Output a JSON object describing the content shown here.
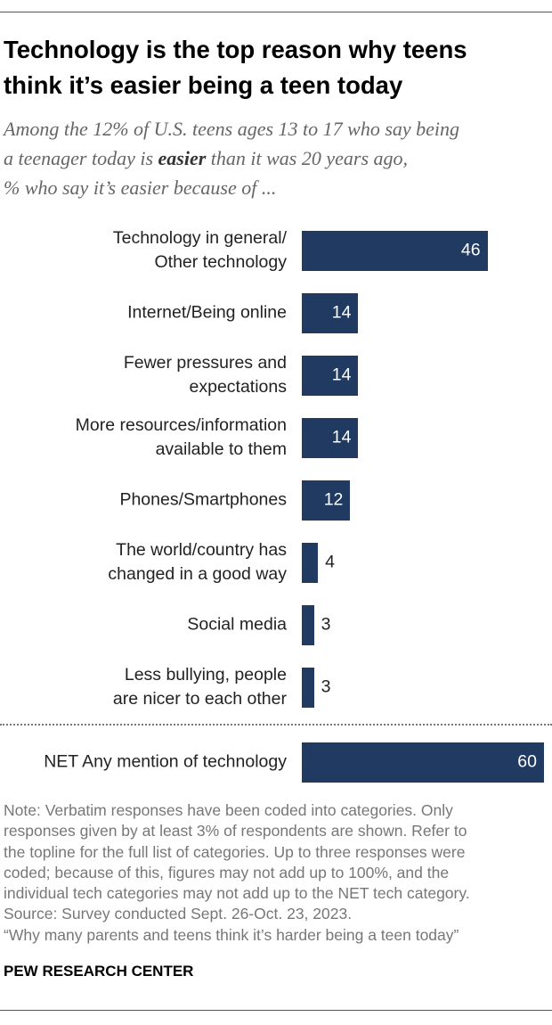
{
  "chart_data": {
    "type": "bar",
    "title": "Technology is the top reason why teens\nthink it’s easier being a teen today",
    "subtitle": [
      "Among the 12% of U.S. teens ages 13 to 17 who say being",
      "a teenager today is ",
      "easier",
      " than it was 20 years ago,",
      "% who say it’s easier because of ..."
    ],
    "categories": [
      "Technology in general/\nOther technology",
      "Internet/Being online",
      "Fewer pressures and\nexpectations",
      "More resources/information\navailable to them",
      "Phones/Smartphones",
      "The world/country has\nchanged in a good way",
      "Social media",
      "Less bullying, people\nare nicer to each other"
    ],
    "values": [
      46,
      14,
      14,
      14,
      12,
      4,
      3,
      3
    ],
    "net": {
      "category": "NET Any mention of technology",
      "value": 60
    },
    "color": "#203a62",
    "note": "Note: Verbatim responses have been coded into categories. Only\nresponses given by at least 3% of respondents are shown. Refer to\nthe topline for the full list of categories. Up to three responses were\ncoded; because of this, figures may not add up to 100%, and the\nindividual tech categories may not add up to the NET tech category.",
    "source": "Source: Survey conducted Sept. 26-Oct. 23, 2023.",
    "report": "“Why many parents and teens think it’s harder being a teen today”",
    "credit": "PEW RESEARCH CENTER"
  }
}
